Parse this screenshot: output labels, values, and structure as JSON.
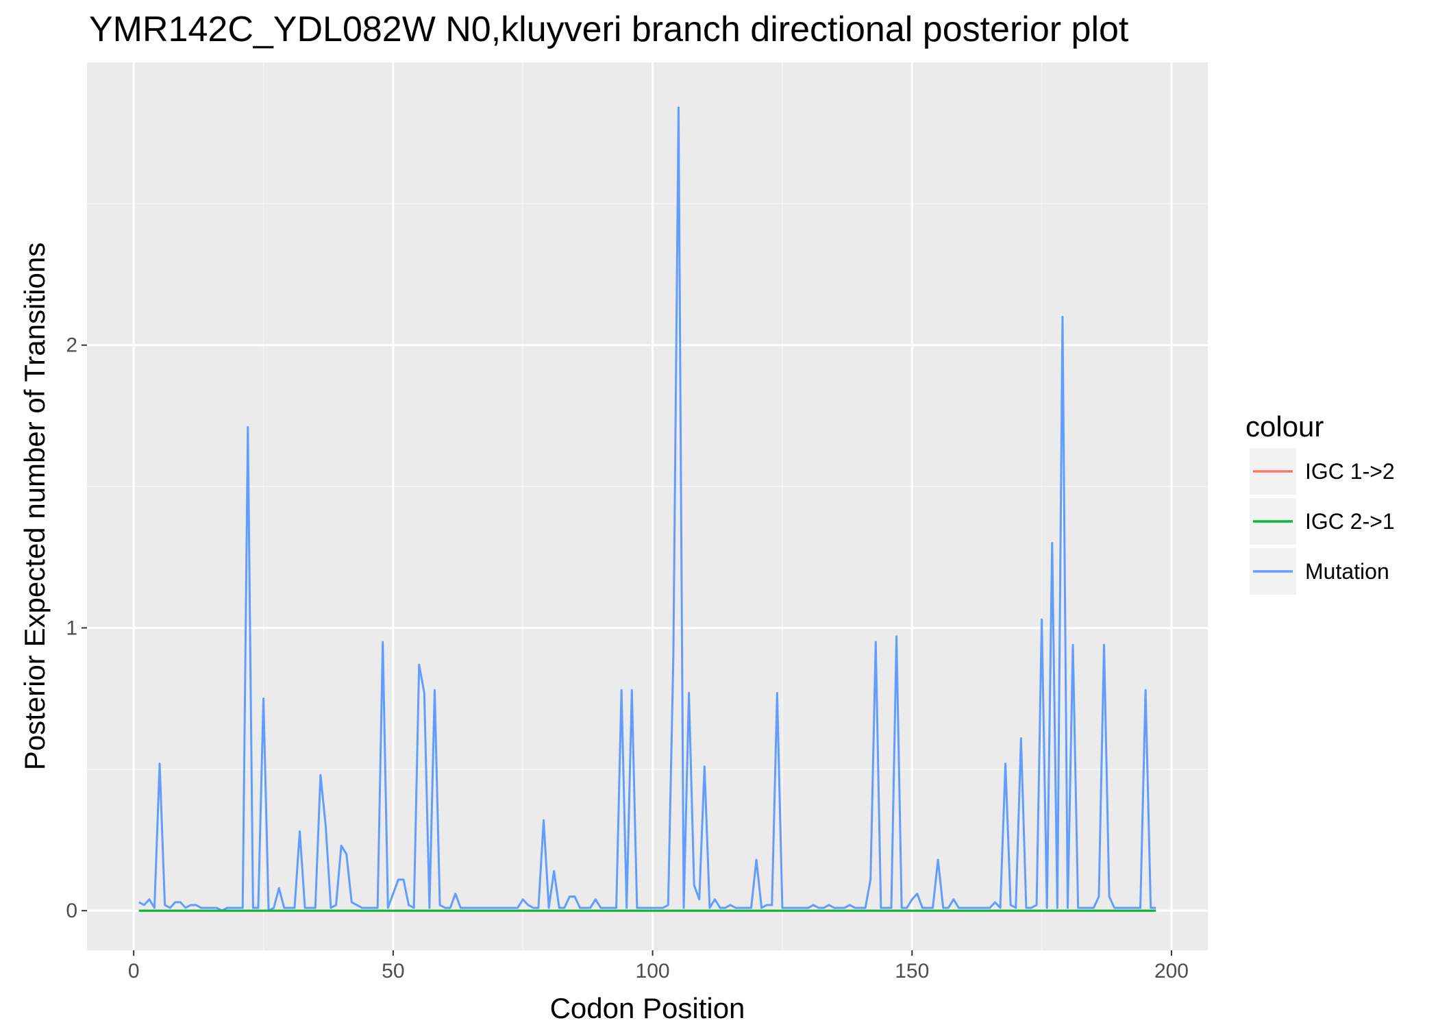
{
  "chart_data": {
    "type": "line",
    "title": "YMR142C_YDL082W N0,kluyveri branch directional posterior plot",
    "xlabel": "Codon Position",
    "ylabel": "Posterior Expected number of Transitions",
    "xlim": [
      -9,
      207
    ],
    "ylim": [
      -0.14,
      3.0
    ],
    "x_ticks": [
      0,
      50,
      100,
      150,
      200
    ],
    "x_tick_labels": [
      "0",
      "50",
      "100",
      "150",
      "200"
    ],
    "y_ticks": [
      0,
      1,
      2
    ],
    "y_tick_labels": [
      "0",
      "1",
      "2"
    ],
    "grid": true,
    "legend": {
      "title": "colour",
      "position": "right",
      "entries": [
        "IGC 1->2",
        "IGC 2->1",
        "Mutation"
      ]
    },
    "series": [
      {
        "name": "IGC 1->2",
        "color": "#F8766D",
        "x": [
          1,
          197
        ],
        "y": [
          0,
          0
        ]
      },
      {
        "name": "IGC 2->1",
        "color": "#00BA38",
        "x": [
          1,
          197
        ],
        "y": [
          0,
          0
        ]
      },
      {
        "name": "Mutation",
        "color": "#619CFF",
        "x": [
          1,
          2,
          3,
          4,
          5,
          6,
          7,
          8,
          9,
          10,
          11,
          12,
          13,
          14,
          15,
          16,
          17,
          18,
          19,
          20,
          21,
          22,
          23,
          24,
          25,
          26,
          27,
          28,
          29,
          30,
          31,
          32,
          33,
          34,
          35,
          36,
          37,
          38,
          39,
          40,
          41,
          42,
          43,
          44,
          45,
          46,
          47,
          48,
          49,
          50,
          51,
          52,
          53,
          54,
          55,
          56,
          57,
          58,
          59,
          60,
          61,
          62,
          63,
          64,
          65,
          66,
          67,
          68,
          69,
          70,
          71,
          72,
          73,
          74,
          75,
          76,
          77,
          78,
          79,
          80,
          81,
          82,
          83,
          84,
          85,
          86,
          87,
          88,
          89,
          90,
          91,
          92,
          93,
          94,
          95,
          96,
          97,
          98,
          99,
          100,
          101,
          102,
          103,
          104,
          105,
          106,
          107,
          108,
          109,
          110,
          111,
          112,
          113,
          114,
          115,
          116,
          117,
          118,
          119,
          120,
          121,
          122,
          123,
          124,
          125,
          126,
          127,
          128,
          129,
          130,
          131,
          132,
          133,
          134,
          135,
          136,
          137,
          138,
          139,
          140,
          141,
          142,
          143,
          144,
          145,
          146,
          147,
          148,
          149,
          150,
          151,
          152,
          153,
          154,
          155,
          156,
          157,
          158,
          159,
          160,
          161,
          162,
          163,
          164,
          165,
          166,
          167,
          168,
          169,
          170,
          171,
          172,
          173,
          174,
          175,
          176,
          177,
          178,
          179,
          180,
          181,
          182,
          183,
          184,
          185,
          186,
          187,
          188,
          189,
          190,
          191,
          192,
          193,
          194,
          195,
          196,
          197
        ],
        "y": [
          0.03,
          0.02,
          0.04,
          0.01,
          0.52,
          0.02,
          0.01,
          0.03,
          0.03,
          0.01,
          0.02,
          0.02,
          0.01,
          0.01,
          0.01,
          0.01,
          0,
          0.01,
          0.01,
          0.01,
          0.01,
          1.71,
          0.01,
          0.01,
          0.75,
          0,
          0.01,
          0.08,
          0.01,
          0.01,
          0.01,
          0.28,
          0.01,
          0.01,
          0.01,
          0.48,
          0.3,
          0.01,
          0.02,
          0.23,
          0.2,
          0.03,
          0.02,
          0.01,
          0.01,
          0.01,
          0.01,
          0.95,
          0.01,
          0.06,
          0.11,
          0.11,
          0.02,
          0.01,
          0.87,
          0.77,
          0.01,
          0.78,
          0.02,
          0.01,
          0.01,
          0.06,
          0.01,
          0.01,
          0.01,
          0.01,
          0.01,
          0.01,
          0.01,
          0.01,
          0.01,
          0.01,
          0.01,
          0.01,
          0.04,
          0.02,
          0.01,
          0.01,
          0.32,
          0.01,
          0.14,
          0.01,
          0.01,
          0.05,
          0.05,
          0.01,
          0.01,
          0.01,
          0.04,
          0.01,
          0.01,
          0.01,
          0.01,
          0.78,
          0.01,
          0.78,
          0.01,
          0.01,
          0.01,
          0.01,
          0.01,
          0.01,
          0.02,
          0.9,
          2.84,
          0.01,
          0.77,
          0.09,
          0.04,
          0.51,
          0.01,
          0.04,
          0.01,
          0.01,
          0.02,
          0.01,
          0.01,
          0.01,
          0.01,
          0.18,
          0.01,
          0.02,
          0.02,
          0.77,
          0.01,
          0.01,
          0.01,
          0.01,
          0.01,
          0.01,
          0.02,
          0.01,
          0.01,
          0.02,
          0.01,
          0.01,
          0.01,
          0.02,
          0.01,
          0.01,
          0.01,
          0.11,
          0.95,
          0.01,
          0.01,
          0.01,
          0.97,
          0.01,
          0.01,
          0.04,
          0.06,
          0.01,
          0.01,
          0.01,
          0.18,
          0.01,
          0.01,
          0.04,
          0.01,
          0.01,
          0.01,
          0.01,
          0.01,
          0.01,
          0.01,
          0.03,
          0.01,
          0.52,
          0.02,
          0.01,
          0.61,
          0.01,
          0.01,
          0.02,
          1.03,
          0.01,
          1.3,
          0.01,
          2.1,
          0.01,
          0.94,
          0.01,
          0.01,
          0.01,
          0.01,
          0.05,
          0.94,
          0.05,
          0.01,
          0.01,
          0.01,
          0.01,
          0.01,
          0.01,
          0.78,
          0.01,
          0.01
        ]
      }
    ]
  }
}
